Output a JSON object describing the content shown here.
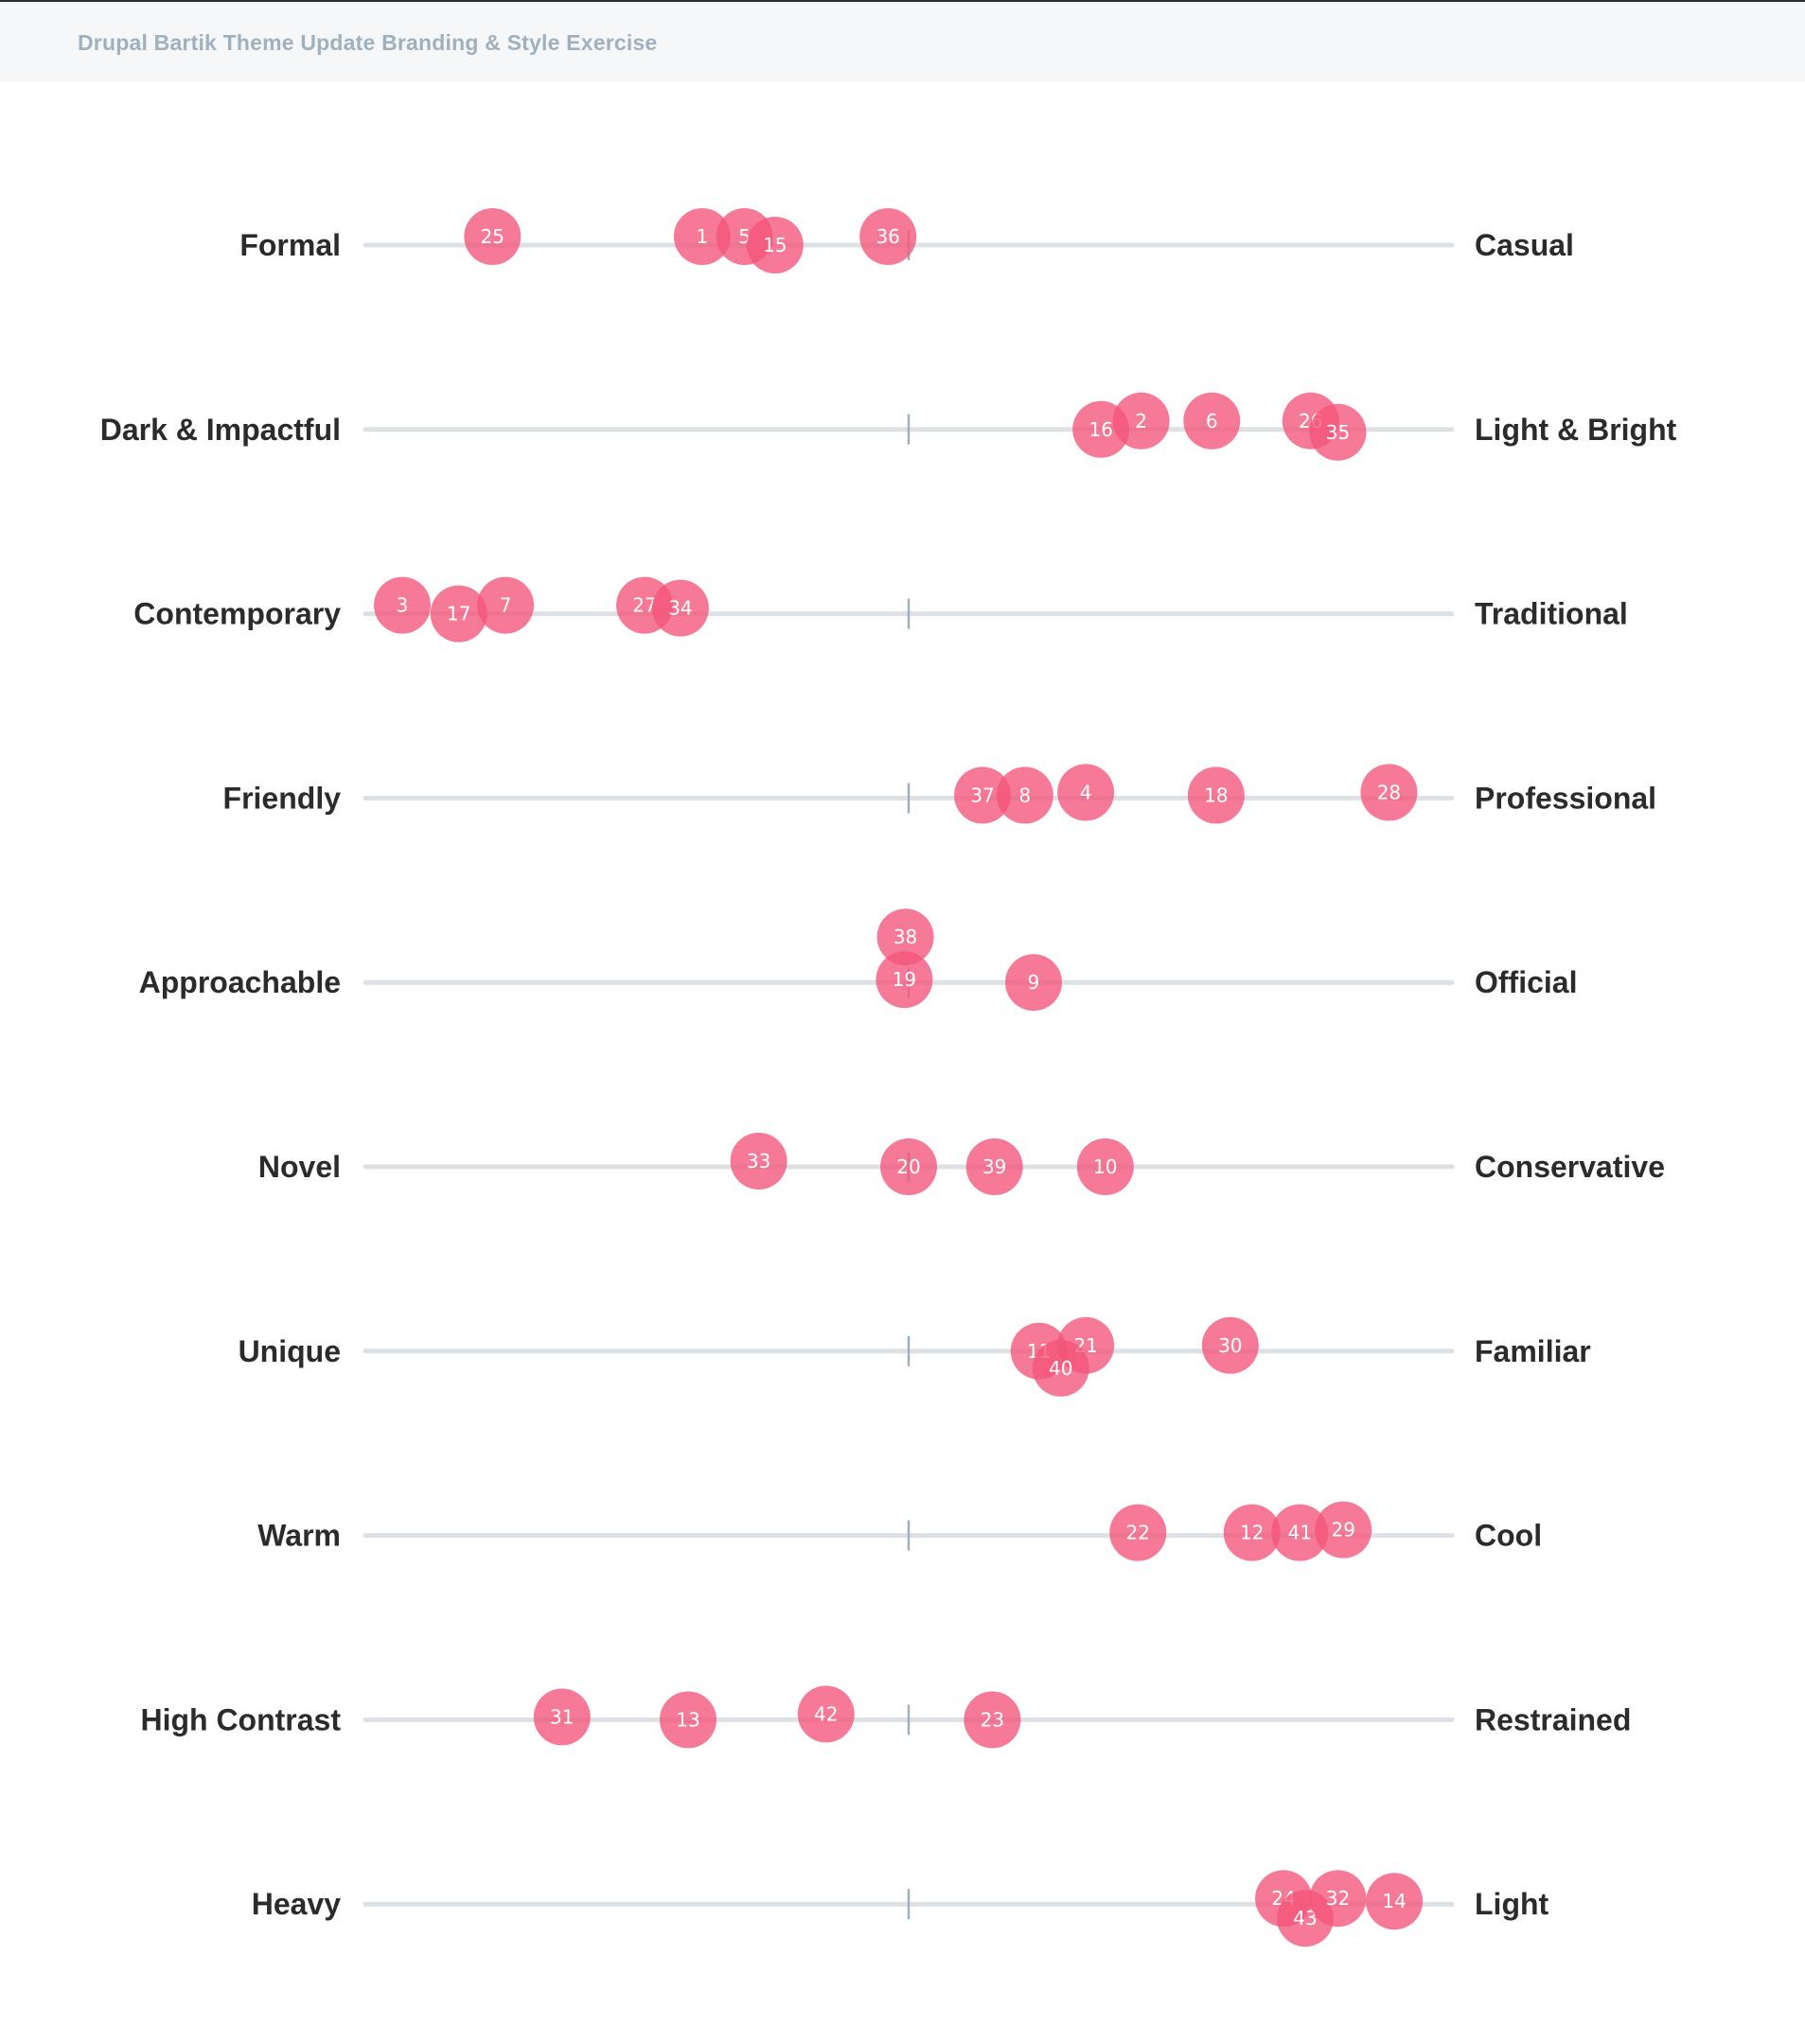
{
  "header": {
    "title": "Drupal Bartik Theme Update Branding & Style Exercise"
  },
  "colors": {
    "dot": "#f4557a",
    "track": "#dde1e5",
    "midline": "#9fb0be",
    "label": "#2b2b2b"
  },
  "chart_data": {
    "type": "scatter",
    "scale": {
      "min": 0,
      "max": 100,
      "midpoint": 50
    },
    "rows": [
      {
        "left": "Formal",
        "right": "Casual",
        "points": [
          {
            "id": "25",
            "x": 11.7,
            "y": 0.3
          },
          {
            "id": "1",
            "x": 31.0,
            "y": 0.3
          },
          {
            "id": "5",
            "x": 34.9,
            "y": 0.3
          },
          {
            "id": "15",
            "x": 37.7,
            "y": 0
          },
          {
            "id": "36",
            "x": 48.1,
            "y": 0.3
          }
        ]
      },
      {
        "left": "Dark & Impactful",
        "right": "Light & Bright",
        "points": [
          {
            "id": "16",
            "x": 67.7,
            "y": 0
          },
          {
            "id": "2",
            "x": 71.4,
            "y": 0.3
          },
          {
            "id": "6",
            "x": 77.9,
            "y": 0.3
          },
          {
            "id": "26",
            "x": 87.0,
            "y": 0.3
          },
          {
            "id": "35",
            "x": 89.5,
            "y": -0.1
          }
        ]
      },
      {
        "left": "Contemporary",
        "right": "Traditional",
        "points": [
          {
            "id": "3",
            "x": 3.4,
            "y": 0.3
          },
          {
            "id": "17",
            "x": 8.6,
            "y": 0
          },
          {
            "id": "7",
            "x": 12.9,
            "y": 0.3
          },
          {
            "id": "27",
            "x": 25.7,
            "y": 0.3
          },
          {
            "id": "34",
            "x": 29.0,
            "y": 0.2
          }
        ]
      },
      {
        "left": "Friendly",
        "right": "Professional",
        "points": [
          {
            "id": "37",
            "x": 56.8,
            "y": 0.1
          },
          {
            "id": "8",
            "x": 60.7,
            "y": 0.1
          },
          {
            "id": "4",
            "x": 66.3,
            "y": 0.2
          },
          {
            "id": "18",
            "x": 78.3,
            "y": 0.1
          },
          {
            "id": "28",
            "x": 94.2,
            "y": 0.2
          }
        ]
      },
      {
        "left": "Approachable",
        "right": "Official",
        "points": [
          {
            "id": "38",
            "x": 49.7,
            "y": 1.6
          },
          {
            "id": "19",
            "x": 49.6,
            "y": 0.1
          },
          {
            "id": "9",
            "x": 61.5,
            "y": 0
          }
        ]
      },
      {
        "left": "Novel",
        "right": "Conservative",
        "points": [
          {
            "id": "33",
            "x": 36.2,
            "y": 0.2
          },
          {
            "id": "20",
            "x": 50.0,
            "y": 0
          },
          {
            "id": "39",
            "x": 57.9,
            "y": 0
          },
          {
            "id": "10",
            "x": 68.1,
            "y": 0
          }
        ]
      },
      {
        "left": "Unique",
        "right": "Familiar",
        "points": [
          {
            "id": "11",
            "x": 62.0,
            "y": 0
          },
          {
            "id": "21",
            "x": 66.3,
            "y": 0.2
          },
          {
            "id": "40",
            "x": 64.0,
            "y": -0.6
          },
          {
            "id": "30",
            "x": 79.6,
            "y": 0.2
          }
        ]
      },
      {
        "left": "Warm",
        "right": "Cool",
        "points": [
          {
            "id": "22",
            "x": 71.1,
            "y": 0.1
          },
          {
            "id": "12",
            "x": 81.6,
            "y": 0.1
          },
          {
            "id": "41",
            "x": 86.0,
            "y": 0.1
          },
          {
            "id": "29",
            "x": 90.0,
            "y": 0.2
          }
        ]
      },
      {
        "left": "High Contrast",
        "right": "Restrained",
        "points": [
          {
            "id": "31",
            "x": 18.1,
            "y": 0.1
          },
          {
            "id": "13",
            "x": 29.7,
            "y": 0
          },
          {
            "id": "42",
            "x": 42.4,
            "y": 0.2
          },
          {
            "id": "23",
            "x": 57.7,
            "y": 0
          }
        ]
      },
      {
        "left": "Heavy",
        "right": "Light",
        "points": [
          {
            "id": "24",
            "x": 84.5,
            "y": 0.2
          },
          {
            "id": "43",
            "x": 86.5,
            "y": -0.5
          },
          {
            "id": "32",
            "x": 89.5,
            "y": 0.2
          },
          {
            "id": "14",
            "x": 94.7,
            "y": 0.1
          }
        ]
      }
    ]
  }
}
